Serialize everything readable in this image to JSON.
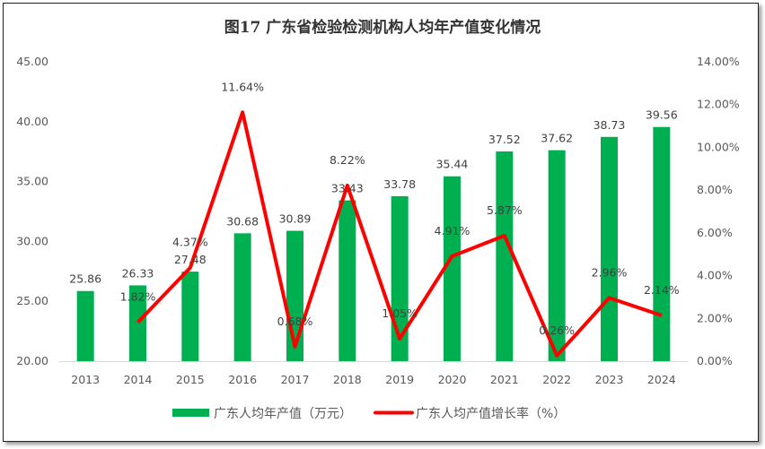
{
  "chart_data": {
    "type": "bar+line",
    "title": "图17  广东省检验检测机构人均年产值变化情况",
    "categories": [
      "2013",
      "2014",
      "2015",
      "2016",
      "2017",
      "2018",
      "2019",
      "2020",
      "2021",
      "2022",
      "2023",
      "2024"
    ],
    "series": [
      {
        "name": "广东人均年产值（万元）",
        "type": "bar",
        "axis": "left",
        "color": "#00b050",
        "values": [
          25.86,
          26.33,
          27.48,
          30.68,
          30.89,
          33.43,
          33.78,
          35.44,
          37.52,
          37.62,
          38.73,
          39.56
        ],
        "labels": [
          "25.86",
          "26.33",
          "27.48",
          "30.68",
          "30.89",
          "33.43",
          "33.78",
          "35.44",
          "37.52",
          "37.62",
          "38.73",
          "39.56"
        ]
      },
      {
        "name": "广东人均产值增长率（%）",
        "type": "line",
        "axis": "right",
        "color": "#ff0000",
        "values": [
          null,
          1.82,
          4.37,
          11.64,
          0.68,
          8.22,
          1.05,
          4.91,
          5.87,
          0.26,
          2.96,
          2.14
        ],
        "labels": [
          "",
          "1.82%",
          "4.37%",
          "11.64%",
          "0.68%",
          "8.22%",
          "1.05%",
          "4.91%",
          "5.87%",
          "0.26%",
          "2.96%",
          "2.14%"
        ]
      }
    ],
    "y_left": {
      "range": [
        20,
        45
      ],
      "ticks": [
        "20.00",
        "25.00",
        "30.00",
        "35.00",
        "40.00",
        "45.00"
      ]
    },
    "y_right": {
      "range": [
        0,
        14
      ],
      "ticks": [
        "0.00%",
        "2.00%",
        "4.00%",
        "6.00%",
        "8.00%",
        "10.00%",
        "12.00%",
        "14.00%"
      ]
    },
    "grid": false,
    "legend": "bottom"
  }
}
